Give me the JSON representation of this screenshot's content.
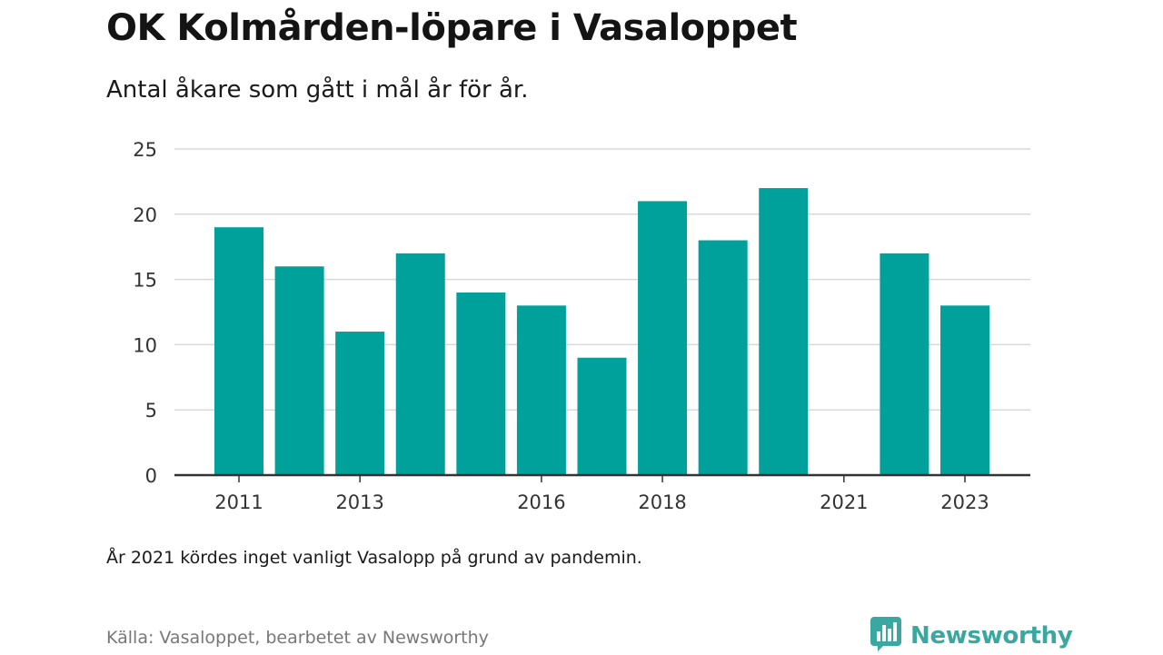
{
  "header": {
    "title": "OK Kolmården-löpare i Vasaloppet",
    "subtitle": "Antal åkare som gått i mål år för år."
  },
  "footer": {
    "note": "År 2021 kördes inget vanligt Vasalopp på grund av pandemin.",
    "source": "Källa: Vasaloppet, bearbetet av Newsworthy",
    "brand_name": "Newsworthy",
    "brand_icon": "bar-chart-speech-bubble-icon"
  },
  "colors": {
    "bar": "#00a19a",
    "brand": "#3aa7a0",
    "grid": "#d9d9d9",
    "axis": "#333333",
    "tick_text": "#333333"
  },
  "chart_data": {
    "type": "bar",
    "categories": [
      "2011",
      "2012",
      "2013",
      "2014",
      "2015",
      "2016",
      "2017",
      "2018",
      "2019",
      "2020",
      "2021",
      "2022",
      "2023"
    ],
    "values": [
      19,
      16,
      11,
      17,
      14,
      13,
      9,
      21,
      18,
      22,
      0,
      17,
      13
    ],
    "x_tick_labels": [
      "2011",
      "2013",
      "2016",
      "2018",
      "2021",
      "2023"
    ],
    "y_ticks": [
      0,
      5,
      10,
      15,
      20,
      25
    ],
    "ylim": [
      0,
      25
    ],
    "title": "OK Kolmården-löpare i Vasaloppet",
    "subtitle": "Antal åkare som gått i mål år för år.",
    "xlabel": "",
    "ylabel": "",
    "grid": true,
    "legend": "none"
  }
}
